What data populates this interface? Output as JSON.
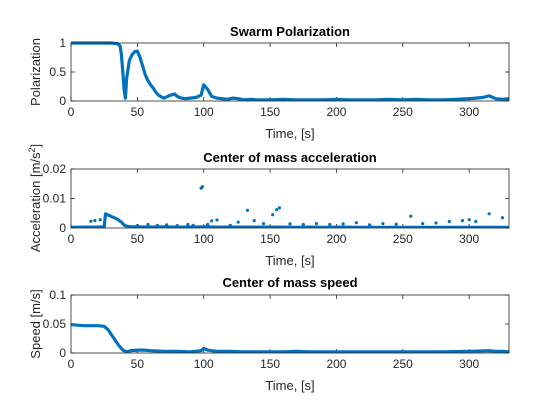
{
  "chart_data": [
    {
      "type": "scatter",
      "title": "Swarm Polarization",
      "xlabel": "Time, [s]",
      "ylabel": "Polarization",
      "xlim": [
        0,
        330
      ],
      "ylim": [
        0,
        1
      ],
      "xticks": [
        "0",
        "50",
        "100",
        "150",
        "200",
        "250",
        "300"
      ],
      "yticks": [
        "0",
        "0.5",
        "1"
      ],
      "color": "#0072BD",
      "line": {
        "x": [
          0,
          10,
          20,
          30,
          35,
          37,
          38,
          39,
          40,
          41,
          42,
          44,
          46,
          48,
          50,
          52,
          54,
          56,
          58,
          60,
          62,
          64,
          66,
          68,
          70,
          72,
          75,
          78,
          80,
          83,
          86,
          90,
          94,
          98,
          100,
          103,
          106,
          110,
          114,
          118,
          122,
          126,
          130,
          135,
          140,
          150,
          160,
          170,
          180,
          190,
          200,
          210,
          220,
          230,
          240,
          250,
          260,
          270,
          280,
          290,
          300,
          305,
          310,
          315,
          320,
          325,
          330
        ],
        "y": [
          1,
          1,
          1,
          1,
          0.99,
          0.95,
          0.8,
          0.5,
          0.2,
          0.05,
          0.4,
          0.7,
          0.8,
          0.85,
          0.86,
          0.75,
          0.6,
          0.45,
          0.35,
          0.28,
          0.22,
          0.15,
          0.1,
          0.07,
          0.05,
          0.07,
          0.1,
          0.12,
          0.08,
          0.05,
          0.04,
          0.05,
          0.06,
          0.1,
          0.28,
          0.2,
          0.08,
          0.05,
          0.04,
          0.03,
          0.05,
          0.04,
          0.02,
          0.03,
          0.02,
          0.02,
          0.03,
          0.02,
          0.02,
          0.02,
          0.03,
          0.02,
          0.02,
          0.02,
          0.03,
          0.02,
          0.03,
          0.02,
          0.02,
          0.03,
          0.04,
          0.05,
          0.06,
          0.09,
          0.04,
          0.03,
          0.04
        ]
      },
      "points": {
        "x": [],
        "y": []
      }
    },
    {
      "type": "scatter",
      "title": "Center of mass acceleration",
      "xlabel": "Time, [s]",
      "ylabel": "Acceleration [m/s2]",
      "ylabel_main": "Acceleration [m/s",
      "ylabel_sup": "2",
      "ylabel_end": "]",
      "xlim": [
        0,
        330
      ],
      "ylim": [
        0,
        0.02
      ],
      "xticks": [
        "0",
        "50",
        "100",
        "150",
        "200",
        "250",
        "300"
      ],
      "yticks": [
        "0",
        "0.01",
        "0.02"
      ],
      "color": "#0072BD",
      "line": {
        "x": [
          0,
          10,
          20,
          25,
          26,
          30,
          35,
          38,
          40,
          42,
          45,
          50,
          60,
          70,
          80,
          90,
          100,
          110,
          120,
          130,
          140,
          150,
          160,
          170,
          180,
          190,
          200,
          220,
          240,
          260,
          280,
          300,
          320,
          330
        ],
        "y": [
          0.0002,
          0.0003,
          0.0003,
          0.0004,
          0.0048,
          0.004,
          0.003,
          0.002,
          0.001,
          0.0006,
          0.0004,
          0.0004,
          0.0003,
          0.0004,
          0.0003,
          0.0003,
          0.0004,
          0.0003,
          0.0003,
          0.0003,
          0.0003,
          0.0003,
          0.0003,
          0.0002,
          0.0003,
          0.0002,
          0.0003,
          0.0002,
          0.0002,
          0.0002,
          0.0002,
          0.0002,
          0.0002,
          0.0002
        ]
      },
      "points": {
        "x": [
          15,
          18,
          22,
          50,
          58,
          65,
          72,
          80,
          88,
          92,
          98,
          99,
          103,
          106,
          110,
          120,
          126,
          133,
          138,
          145,
          152,
          155,
          157,
          165,
          175,
          185,
          195,
          205,
          215,
          225,
          235,
          245,
          256,
          265,
          275,
          285,
          295,
          300,
          305,
          315,
          325
        ],
        "y": [
          0.0023,
          0.0025,
          0.0028,
          0.0008,
          0.0012,
          0.0009,
          0.0011,
          0.0008,
          0.0012,
          0.0009,
          0.0135,
          0.014,
          0.0012,
          0.0024,
          0.0027,
          0.0009,
          0.002,
          0.006,
          0.0025,
          0.0015,
          0.0045,
          0.0062,
          0.0068,
          0.0014,
          0.0012,
          0.0015,
          0.0012,
          0.0014,
          0.0018,
          0.0011,
          0.0015,
          0.0013,
          0.004,
          0.0015,
          0.0017,
          0.0022,
          0.0025,
          0.0028,
          0.0022,
          0.0048,
          0.0035
        ]
      }
    },
    {
      "type": "scatter",
      "title": "Center of mass speed",
      "xlabel": "Time, [s]",
      "ylabel": "Speed [m/s]",
      "xlim": [
        0,
        330
      ],
      "ylim": [
        0,
        0.1
      ],
      "xticks": [
        "0",
        "50",
        "100",
        "150",
        "200",
        "250",
        "300"
      ],
      "yticks": [
        "0",
        "0.05",
        "0.1"
      ],
      "color": "#0072BD",
      "line": {
        "x": [
          0,
          5,
          10,
          15,
          20,
          25,
          28,
          30,
          33,
          36,
          39,
          42,
          45,
          50,
          55,
          60,
          70,
          80,
          90,
          98,
          100,
          103,
          106,
          110,
          120,
          130,
          140,
          150,
          160,
          170,
          180,
          190,
          200,
          220,
          240,
          260,
          280,
          300,
          315,
          320,
          325,
          330
        ],
        "y": [
          0.049,
          0.048,
          0.047,
          0.047,
          0.047,
          0.046,
          0.04,
          0.033,
          0.023,
          0.013,
          0.005,
          0.002,
          0.004,
          0.005,
          0.005,
          0.004,
          0.003,
          0.003,
          0.002,
          0.004,
          0.008,
          0.005,
          0.004,
          0.003,
          0.003,
          0.002,
          0.002,
          0.002,
          0.002,
          0.003,
          0.002,
          0.002,
          0.002,
          0.002,
          0.002,
          0.002,
          0.002,
          0.003,
          0.004,
          0.003,
          0.003,
          0.002
        ]
      },
      "points": {
        "x": [],
        "y": []
      }
    }
  ]
}
